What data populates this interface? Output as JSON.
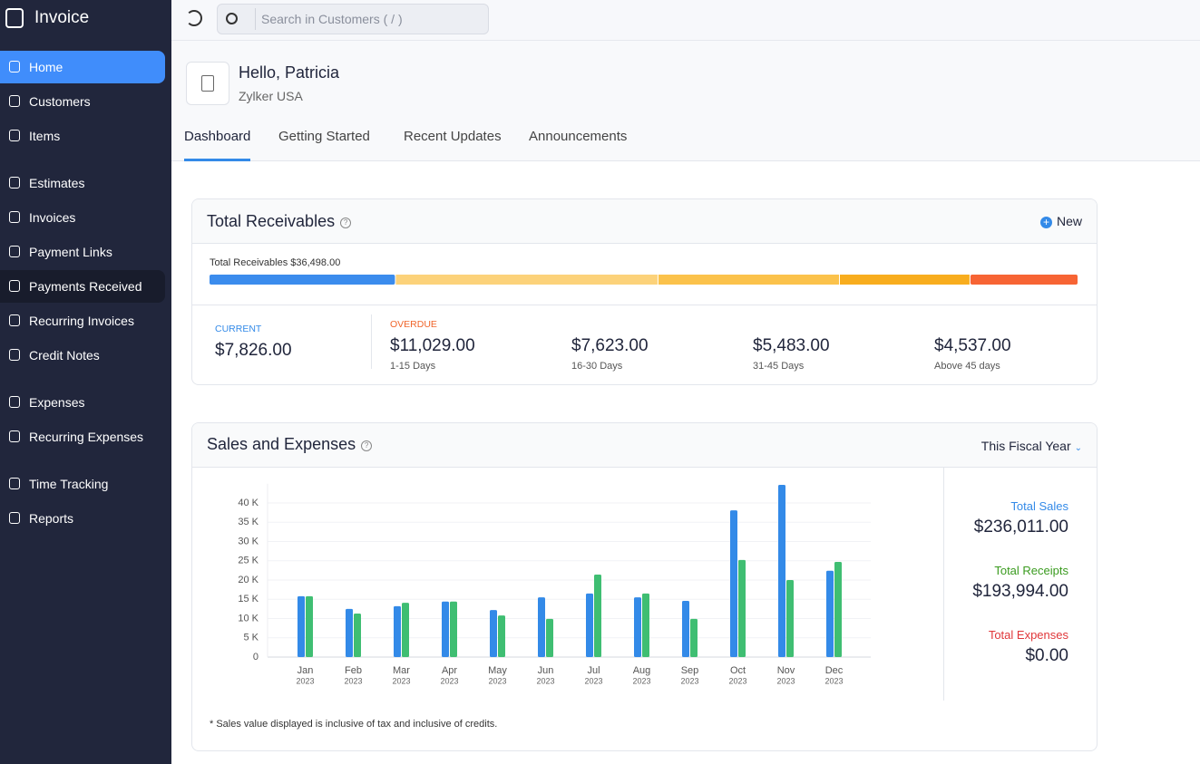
{
  "sidebar": {
    "app_name": "Invoice",
    "sections": [
      [
        "Home",
        "Customers",
        "Items"
      ],
      [
        "Estimates",
        "Invoices",
        "Payment Links",
        "Payments Received",
        "Recurring Invoices",
        "Credit Notes"
      ],
      [
        "Expenses",
        "Recurring Expenses"
      ],
      [
        "Time Tracking",
        "Reports"
      ]
    ]
  },
  "topbar": {
    "search_placeholder": "Search in Customers ( / )"
  },
  "header": {
    "greeting": "Hello, Patricia",
    "organization": "Zylker USA",
    "tabs": [
      "Dashboard",
      "Getting Started",
      "Recent Updates",
      "Announcements"
    ]
  },
  "receivables": {
    "title": "Total Receivables",
    "new_button": "New",
    "total_label": "Total Receivables $36,498.00",
    "current": {
      "label": "CURRENT",
      "amount": 7826,
      "amount_label": "$7,826.00",
      "color": "#3b8ced"
    },
    "overdue_label": "OVERDUE",
    "overdue": [
      {
        "amount": 11029,
        "amount_label": "$11,029.00",
        "range": "1-15 Days",
        "color": "#fcd27a"
      },
      {
        "amount": 7623,
        "amount_label": "$7,623.00",
        "range": "16-30 Days",
        "color": "#fbc24b"
      },
      {
        "amount": 5483,
        "amount_label": "$5,483.00",
        "range": "31-45 Days",
        "color": "#f8ad1e"
      },
      {
        "amount": 4537,
        "amount_label": "$4,537.00",
        "range": "Above 45 days",
        "color": "#f76434"
      }
    ]
  },
  "sales_card": {
    "title": "Sales and Expenses",
    "period": "This Fiscal Year",
    "expenses_name": "Total Expenses",
    "expenses_total": "$0.00",
    "footnote": "* Sales value displayed is inclusive of tax and inclusive of credits."
  },
  "chart_data": {
    "type": "bar",
    "categories": [
      "Jan",
      "Feb",
      "Mar",
      "Apr",
      "May",
      "Jun",
      "Jul",
      "Aug",
      "Sep",
      "Oct",
      "Nov",
      "Dec"
    ],
    "category_years": [
      "2023",
      "2023",
      "2023",
      "2023",
      "2023",
      "2023",
      "2023",
      "2023",
      "2023",
      "2023",
      "2023",
      "2023"
    ],
    "series": [
      {
        "name": "Total Sales",
        "color": "#338ae8",
        "total": "$236,011.00",
        "values": [
          15800,
          12500,
          13200,
          14400,
          12200,
          15500,
          16500,
          15500,
          14600,
          38100,
          44700,
          22400
        ]
      },
      {
        "name": "Total Receipts",
        "color": "#3fbe72",
        "total": "$193,994.00",
        "values": [
          15800,
          11300,
          14100,
          14400,
          10800,
          9900,
          21400,
          16500,
          9900,
          25200,
          20000,
          24700
        ]
      }
    ],
    "ylim": [
      0,
      45000
    ],
    "yticks": [
      0,
      {
        "value": 5000,
        "label": "5 K"
      },
      {
        "value": 10000,
        "label": "10 K"
      },
      {
        "value": 15000,
        "label": "15 K"
      },
      {
        "value": 20000,
        "label": "20 K"
      },
      {
        "value": 25000,
        "label": "25 K"
      },
      {
        "value": 30000,
        "label": "30 K"
      },
      {
        "value": 35000,
        "label": "35 K"
      },
      {
        "value": 40000,
        "label": "40 K"
      }
    ],
    "grid": true
  }
}
